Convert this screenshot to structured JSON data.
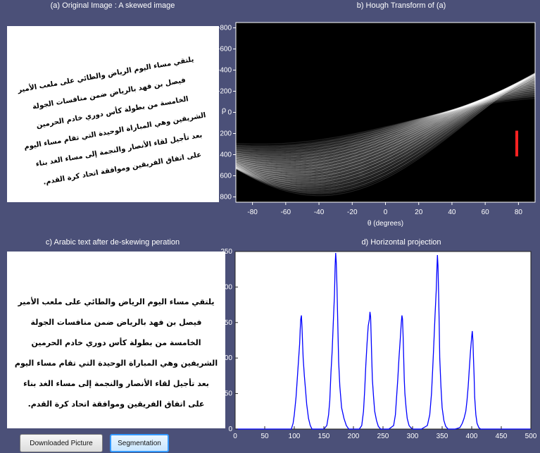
{
  "panels": {
    "a_title": "(a) Original Image : A skewed image",
    "b_title": "b) Hough Transform of (a)",
    "c_title": "c) Arabic text after de-skewing peration",
    "d_title": "d) Horizontal projection"
  },
  "skewed_text": [
    "يلتقي مساء اليوم الرياض والطائي على ملعب الأمير",
    "فيصل بن فهد بالرياض ضمن منافسات الجولة",
    "الخامسة من بطولة كأس دوري خادم الحرمين",
    "الشريفين وهي المباراة الوحيدة التي تقام مساء اليوم",
    "بعد تأجيل لقاء الأنصار والنجمة إلى مساء الغد بناء",
    "على اتفاق الفريقين وموافقة اتحاد كرة القدم."
  ],
  "deskewed_text": [
    "يلتقي مساء اليوم الرياض والطائي على ملعب الأمير",
    "فيصل بن فهد بالرياض ضمن منافسات الجولة",
    "الخامسة من بطولة كأس دوري خادم الحرمين",
    "الشريفين وهي المباراة الوحيدة التي تقام مساء اليوم",
    "بعد تأجيل لقاء الأنصار والنجمة إلى مساء الغد بناء",
    "على اتفاق الفريقين وموافقة اتحاد كرة القدم."
  ],
  "hough": {
    "xlabel": "θ (degrees)",
    "ylabel": "ρ",
    "xticks": [
      "-80",
      "-60",
      "-40",
      "-20",
      "0",
      "20",
      "40",
      "60",
      "80"
    ],
    "yticks": [
      "-800",
      "-600",
      "-400",
      "-200",
      "0",
      "200",
      "400",
      "600",
      "800"
    ],
    "xlim": [
      -90,
      90
    ],
    "ylim": [
      -850,
      850
    ],
    "peaks_theta": 79,
    "peaks_rho": [
      200,
      240,
      290,
      340,
      390
    ]
  },
  "chart_data": {
    "type": "line",
    "title": "d) Horizontal projection",
    "xlim": [
      0,
      500
    ],
    "ylim": [
      0,
      250
    ],
    "xticks": [
      "0",
      "50",
      "100",
      "150",
      "200",
      "250",
      "300",
      "350",
      "400",
      "450",
      "500"
    ],
    "yticks": [
      "0",
      "50",
      "100",
      "150",
      "200",
      "250"
    ],
    "grid": false,
    "series": [
      {
        "color": "#0000ff",
        "x": [
          0,
          95,
          98,
          100,
          103,
          105,
          107,
          109,
          110,
          111,
          112,
          113,
          114,
          115,
          117,
          119,
          121,
          124,
          127,
          130,
          140,
          150,
          155,
          158,
          160,
          162,
          164,
          166,
          168,
          169,
          170,
          171,
          172,
          173,
          174,
          175,
          177,
          180,
          184,
          188,
          192,
          200,
          210,
          214,
          217,
          219,
          221,
          223,
          225,
          227,
          228,
          229,
          230,
          231,
          232,
          234,
          236,
          239,
          242,
          246,
          250,
          260,
          268,
          271,
          273,
          275,
          277,
          279,
          281,
          282,
          283,
          284,
          285,
          286,
          287,
          289,
          291,
          294,
          297,
          300,
          305,
          315,
          325,
          329,
          332,
          334,
          336,
          338,
          340,
          341,
          342,
          343,
          344,
          345,
          346,
          348,
          350,
          353,
          356,
          360,
          365,
          372,
          380,
          384,
          387,
          390,
          392,
          394,
          396,
          398,
          400,
          401,
          402,
          403,
          404,
          405,
          407,
          409,
          412,
          415,
          420,
          500
        ],
        "y": [
          0,
          0,
          8,
          20,
          45,
          70,
          95,
          120,
          140,
          155,
          160,
          145,
          120,
          100,
          75,
          55,
          35,
          15,
          5,
          0,
          0,
          0,
          5,
          20,
          40,
          80,
          110,
          150,
          190,
          230,
          248,
          235,
          205,
          170,
          130,
          95,
          60,
          30,
          15,
          5,
          0,
          0,
          0,
          5,
          25,
          55,
          90,
          120,
          145,
          155,
          165,
          158,
          130,
          100,
          70,
          45,
          25,
          12,
          4,
          0,
          0,
          0,
          5,
          20,
          45,
          70,
          100,
          125,
          150,
          160,
          155,
          130,
          100,
          70,
          50,
          30,
          15,
          5,
          2,
          0,
          0,
          0,
          5,
          20,
          50,
          85,
          120,
          160,
          195,
          220,
          245,
          230,
          190,
          150,
          100,
          60,
          30,
          12,
          4,
          0,
          0,
          0,
          2,
          8,
          15,
          25,
          40,
          60,
          85,
          110,
          130,
          138,
          125,
          100,
          75,
          45,
          20,
          8,
          2,
          0,
          0,
          0
        ]
      }
    ]
  },
  "buttons": {
    "download": "Downloaded Picture",
    "segmentation": "Segmentation"
  }
}
